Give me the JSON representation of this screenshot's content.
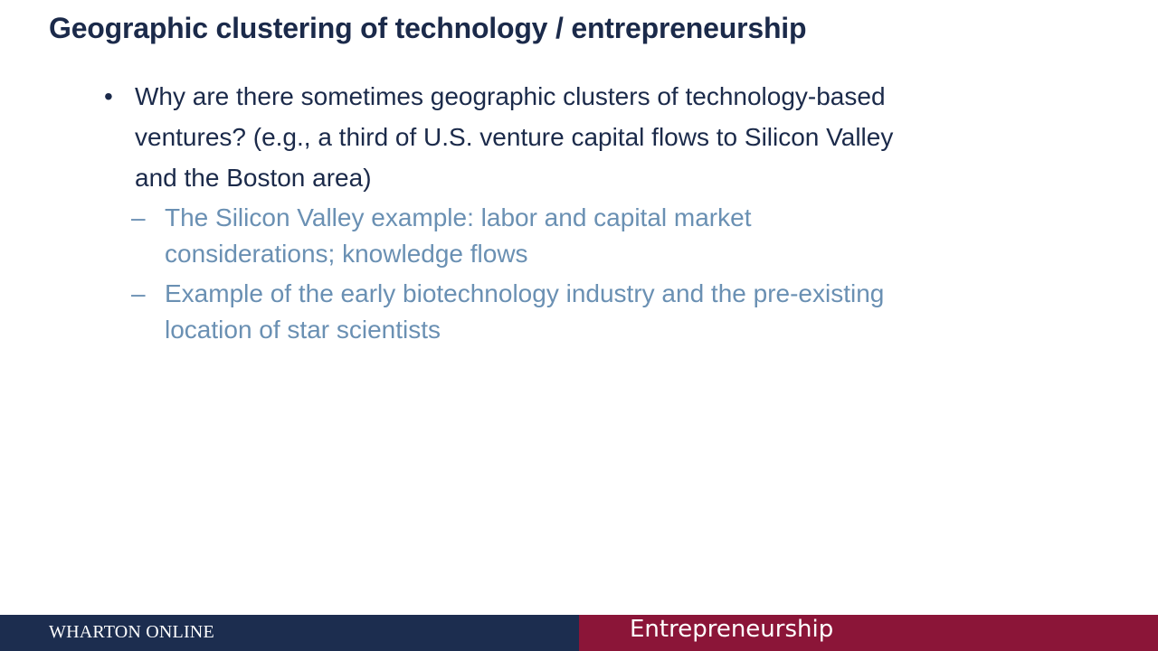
{
  "slide": {
    "title": "Geographic clustering of technology / entrepreneurship",
    "bullets": [
      {
        "marker": "•",
        "text": "Why are there sometimes geographic clusters of technology-based ventures? (e.g., a third of U.S. venture capital flows to Silicon Valley and the Boston area)",
        "sub_bullets": [
          {
            "marker": "–",
            "text": "The Silicon Valley example: labor and capital market considerations; knowledge flows"
          },
          {
            "marker": "–",
            "text": "Example of the early biotechnology industry and the pre-existing location of star scientists"
          }
        ]
      }
    ]
  },
  "footer": {
    "brand": "WHARTON ONLINE",
    "course": "Entrepreneurship",
    "left_color": "#1c2d4f",
    "right_color": "#8b1538"
  },
  "colors": {
    "title": "#1b2a4a",
    "level1_text": "#1b2a4a",
    "level2_text": "#6a90b3"
  }
}
